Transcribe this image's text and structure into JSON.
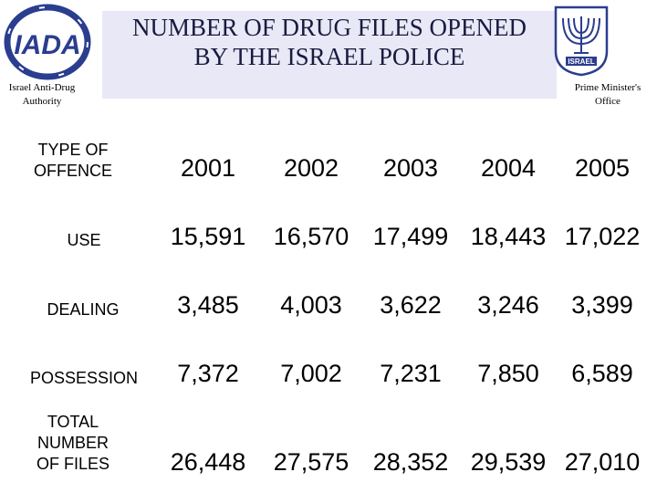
{
  "header": {
    "title": "NUMBER OF DRUG FILES OPENED\nBY THE ISRAEL POLICE",
    "left_logo_text": "IADA",
    "left_caption": "Israel Anti-Drug\nAuthority",
    "right_logo_text": "ISRAEL",
    "right_caption": "Prime Minister's\nOffice"
  },
  "table": {
    "corner_label": "TYPE OF\nOFFENCE",
    "years": [
      "2001",
      "2002",
      "2003",
      "2004",
      "2005"
    ],
    "rows": [
      {
        "label": "USE",
        "values": [
          "15,591",
          "16,570",
          "17,499",
          "18,443",
          "17,022"
        ]
      },
      {
        "label": "DEALING",
        "values": [
          "3,485",
          "4,003",
          "3,622",
          "3,246",
          "3,399"
        ]
      },
      {
        "label": "POSSESSION",
        "values": [
          "7,372",
          "7,002",
          "7,231",
          "7,850",
          "6,589"
        ]
      },
      {
        "label": "TOTAL\nNUMBER\nOF FILES",
        "values": [
          "26,448",
          "27,575",
          "28,352",
          "29,539",
          "27,010"
        ]
      }
    ]
  },
  "colors": {
    "title_box": "#e8e8f6",
    "logo_blue": "#2a3d8f"
  }
}
